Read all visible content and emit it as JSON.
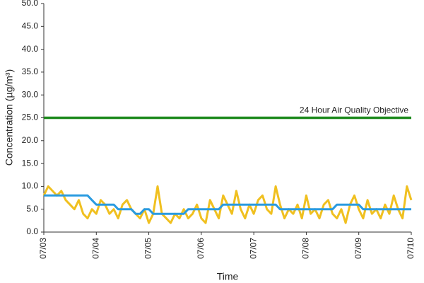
{
  "chart_data": {
    "type": "line",
    "y_label": "Concentration (µg/m³)",
    "x_label": "Time",
    "x": [
      0,
      2,
      4,
      6,
      8,
      10,
      12,
      14,
      16,
      18,
      20,
      22,
      24,
      26,
      28,
      30,
      32,
      34,
      36,
      38,
      40,
      42,
      44,
      46,
      48,
      50,
      52,
      54,
      56,
      58,
      60,
      62,
      64,
      66,
      68,
      70,
      72,
      74,
      76,
      78,
      80,
      82,
      84,
      86,
      88,
      90,
      92,
      94,
      96,
      98,
      100,
      102,
      104,
      106,
      108,
      110,
      112,
      114,
      116,
      118,
      120,
      122,
      124,
      126,
      128,
      130,
      132,
      134,
      136,
      138,
      140,
      142,
      144,
      146,
      148,
      150,
      152,
      154,
      156,
      158,
      160,
      162,
      164,
      166,
      168
    ],
    "xlim": [
      0,
      168
    ],
    "xticks": [
      {
        "value": 0,
        "label": "07/03"
      },
      {
        "value": 24,
        "label": "07/04"
      },
      {
        "value": 48,
        "label": "07/05"
      },
      {
        "value": 72,
        "label": "07/06"
      },
      {
        "value": 96,
        "label": "07/07"
      },
      {
        "value": 120,
        "label": "07/08"
      },
      {
        "value": 144,
        "label": "07/09"
      },
      {
        "value": 168,
        "label": "07/10"
      }
    ],
    "ylim": [
      0,
      50
    ],
    "yticks": [
      {
        "value": 0,
        "label": "0.0"
      },
      {
        "value": 5,
        "label": "5.0"
      },
      {
        "value": 10,
        "label": "10.0"
      },
      {
        "value": 15,
        "label": "15.0"
      },
      {
        "value": 20,
        "label": "20.0"
      },
      {
        "value": 25,
        "label": "25.0"
      },
      {
        "value": 30,
        "label": "30.0"
      },
      {
        "value": 35,
        "label": "35.0"
      },
      {
        "value": 40,
        "label": "40.0"
      },
      {
        "value": 45,
        "label": "45.0"
      },
      {
        "value": 50,
        "label": "50.0"
      }
    ],
    "series": [
      {
        "color": "#f0c020",
        "values": [
          8,
          10,
          9,
          8,
          9,
          7,
          6,
          5,
          7,
          4,
          3,
          5,
          4,
          7,
          6,
          4,
          5,
          3,
          6,
          7,
          5,
          4,
          3,
          5,
          2,
          4,
          10,
          4,
          3,
          2,
          4,
          3,
          5,
          3,
          4,
          6,
          3,
          2,
          7,
          5,
          3,
          8,
          6,
          4,
          9,
          5,
          3,
          6,
          4,
          7,
          8,
          5,
          4,
          10,
          6,
          3,
          5,
          4,
          6,
          3,
          8,
          4,
          5,
          3,
          6,
          7,
          4,
          3,
          5,
          2,
          6,
          8,
          5,
          3,
          7,
          4,
          5,
          3,
          6,
          4,
          8,
          5,
          3,
          10,
          7
        ]
      },
      {
        "color": "#2a9be0",
        "values": [
          8,
          8,
          8,
          8,
          8,
          8,
          8,
          8,
          8,
          8,
          8,
          7,
          6,
          6,
          6,
          6,
          6,
          5,
          5,
          5,
          5,
          4,
          4,
          5,
          5,
          4,
          4,
          4,
          4,
          4,
          4,
          4,
          4,
          5,
          5,
          5,
          5,
          5,
          5,
          5,
          5,
          6,
          6,
          6,
          6,
          6,
          6,
          6,
          6,
          6,
          6,
          6,
          6,
          6,
          5,
          5,
          5,
          5,
          5,
          5,
          5,
          5,
          5,
          5,
          5,
          5,
          5,
          6,
          6,
          6,
          6,
          6,
          6,
          5,
          5,
          5,
          5,
          5,
          5,
          5,
          5,
          5,
          5,
          5,
          5
        ]
      }
    ],
    "objective": {
      "value": 25,
      "label": "24 Hour Air Quality Objective",
      "color": "#1e8a1e"
    }
  }
}
